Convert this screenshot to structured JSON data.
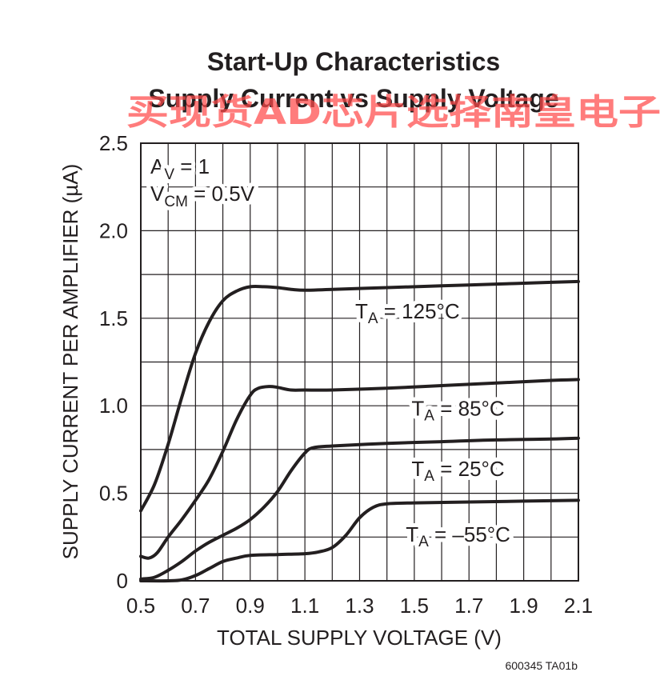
{
  "chart_data": {
    "type": "line",
    "title": "Start-Up Characteristics",
    "subtitle": "Supply Current vs Supply Voltage",
    "xlabel": "TOTAL SUPPLY VOLTAGE (V)",
    "ylabel": "SUPPLY CURRENT PER AMPLIFIER (µA)",
    "xlim": [
      0.5,
      2.1
    ],
    "ylim": [
      0,
      2.5
    ],
    "x_ticks": [
      0.5,
      0.7,
      0.9,
      1.1,
      1.3,
      1.5,
      1.7,
      1.9,
      2.1
    ],
    "y_ticks": [
      0,
      0.5,
      1.0,
      1.5,
      2.0,
      2.5
    ],
    "x_tick_labels": [
      "0.5",
      "0.7",
      "0.9",
      "1.1",
      "1.3",
      "1.5",
      "1.7",
      "1.9",
      "2.1"
    ],
    "y_tick_labels": [
      "0",
      "0.5",
      "1.0",
      "1.5",
      "2.0",
      "2.5"
    ],
    "grid": true,
    "conditions": [
      {
        "main": "A",
        "sub": "V",
        "rest": " = 1"
      },
      {
        "main": "V",
        "sub": "CM",
        "rest": " = 0.5V"
      }
    ],
    "series": [
      {
        "label_main": "T",
        "label_sub": "A",
        "label_rest": " = 125°C",
        "points": [
          [
            0.5,
            0.4
          ],
          [
            0.55,
            0.55
          ],
          [
            0.6,
            0.78
          ],
          [
            0.65,
            1.05
          ],
          [
            0.7,
            1.3
          ],
          [
            0.75,
            1.48
          ],
          [
            0.8,
            1.6
          ],
          [
            0.85,
            1.655
          ],
          [
            0.9,
            1.68
          ],
          [
            0.95,
            1.68
          ],
          [
            1.0,
            1.675
          ],
          [
            1.05,
            1.665
          ],
          [
            1.1,
            1.66
          ],
          [
            1.2,
            1.665
          ],
          [
            1.4,
            1.675
          ],
          [
            1.6,
            1.685
          ],
          [
            1.8,
            1.695
          ],
          [
            2.0,
            1.705
          ],
          [
            2.1,
            1.71
          ]
        ]
      },
      {
        "label_main": "T",
        "label_sub": "A",
        "label_rest": " = 85°C",
        "points": [
          [
            0.5,
            0.14
          ],
          [
            0.53,
            0.13
          ],
          [
            0.56,
            0.16
          ],
          [
            0.6,
            0.25
          ],
          [
            0.65,
            0.35
          ],
          [
            0.7,
            0.46
          ],
          [
            0.75,
            0.58
          ],
          [
            0.8,
            0.74
          ],
          [
            0.85,
            0.92
          ],
          [
            0.9,
            1.06
          ],
          [
            0.93,
            1.1
          ],
          [
            0.97,
            1.11
          ],
          [
            1.0,
            1.105
          ],
          [
            1.05,
            1.09
          ],
          [
            1.1,
            1.09
          ],
          [
            1.2,
            1.09
          ],
          [
            1.4,
            1.1
          ],
          [
            1.6,
            1.115
          ],
          [
            1.8,
            1.13
          ],
          [
            2.0,
            1.145
          ],
          [
            2.1,
            1.15
          ]
        ]
      },
      {
        "label_main": "T",
        "label_sub": "A",
        "label_rest": " = 25°C",
        "points": [
          [
            0.5,
            0.01
          ],
          [
            0.55,
            0.02
          ],
          [
            0.6,
            0.06
          ],
          [
            0.65,
            0.11
          ],
          [
            0.7,
            0.17
          ],
          [
            0.75,
            0.22
          ],
          [
            0.8,
            0.26
          ],
          [
            0.85,
            0.3
          ],
          [
            0.9,
            0.35
          ],
          [
            0.95,
            0.42
          ],
          [
            1.0,
            0.51
          ],
          [
            1.05,
            0.63
          ],
          [
            1.1,
            0.73
          ],
          [
            1.13,
            0.76
          ],
          [
            1.2,
            0.77
          ],
          [
            1.4,
            0.785
          ],
          [
            1.6,
            0.795
          ],
          [
            1.8,
            0.805
          ],
          [
            2.0,
            0.81
          ],
          [
            2.1,
            0.815
          ]
        ]
      },
      {
        "label_main": "T",
        "label_sub": "A",
        "label_rest": " = –55°C",
        "points": [
          [
            0.5,
            0.0
          ],
          [
            0.6,
            0.0
          ],
          [
            0.65,
            0.005
          ],
          [
            0.7,
            0.03
          ],
          [
            0.75,
            0.07
          ],
          [
            0.8,
            0.11
          ],
          [
            0.85,
            0.13
          ],
          [
            0.9,
            0.145
          ],
          [
            1.0,
            0.15
          ],
          [
            1.1,
            0.155
          ],
          [
            1.15,
            0.165
          ],
          [
            1.2,
            0.19
          ],
          [
            1.25,
            0.26
          ],
          [
            1.3,
            0.36
          ],
          [
            1.35,
            0.42
          ],
          [
            1.4,
            0.44
          ],
          [
            1.5,
            0.445
          ],
          [
            1.7,
            0.45
          ],
          [
            1.9,
            0.455
          ],
          [
            2.1,
            0.46
          ]
        ]
      }
    ]
  },
  "figure_id": "600345 TA01b",
  "watermark": "买现货AD芯片选择南皇电子"
}
